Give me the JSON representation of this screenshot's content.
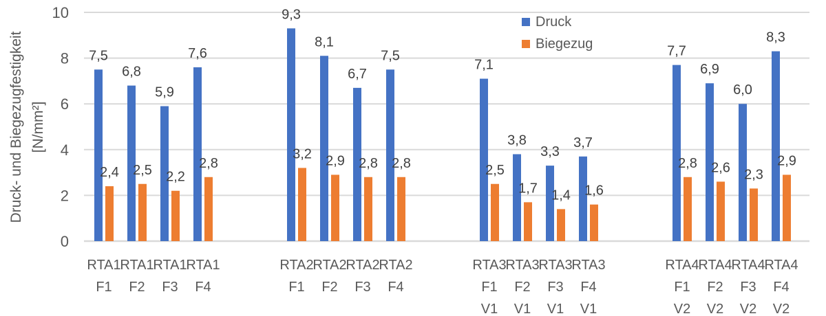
{
  "chart_data": {
    "type": "bar",
    "title": "",
    "xlabel": "",
    "ylabel": "Druck- und Biegezugfestigkeit [N/mm²]",
    "ylabel_lines": [
      "Druck- und Biegezugfestigkeit",
      "[N/mm²]"
    ],
    "ylim": [
      0,
      10
    ],
    "yticks": [
      "0",
      "2",
      "4",
      "6",
      "8",
      "10"
    ],
    "ytick_values": [
      0,
      2,
      4,
      6,
      8,
      10
    ],
    "grid": true,
    "legend_position": "top-center-right",
    "categories": [
      "RTA1 F1",
      "RTA1 F2",
      "RTA1 F3",
      "RTA1 F4",
      "RTA2 F1",
      "RTA2 F2",
      "RTA2 F3",
      "RTA2 F4",
      "RTA3 F1 V1",
      "RTA3 F2 V1",
      "RTA3 F3 V1",
      "RTA3 F4 V1",
      "RTA4 F1 V2",
      "RTA4 F2 V2",
      "RTA4 F3 V2",
      "RTA4 F4 V2"
    ],
    "category_lines": [
      [
        "RTA1",
        "F1"
      ],
      [
        "RTA1",
        "F2"
      ],
      [
        "RTA1",
        "F3"
      ],
      [
        "RTA1",
        "F4"
      ],
      [
        "RTA2",
        "F1"
      ],
      [
        "RTA2",
        "F2"
      ],
      [
        "RTA2",
        "F3"
      ],
      [
        "RTA2",
        "F4"
      ],
      [
        "RTA3",
        "F1",
        "V1"
      ],
      [
        "RTA3",
        "F2",
        "V1"
      ],
      [
        "RTA3",
        "F3",
        "V1"
      ],
      [
        "RTA3",
        "F4",
        "V1"
      ],
      [
        "RTA4",
        "F1",
        "V2"
      ],
      [
        "RTA4",
        "F2",
        "V2"
      ],
      [
        "RTA4",
        "F3",
        "V2"
      ],
      [
        "RTA4",
        "F4",
        "V2"
      ]
    ],
    "groups": [
      4,
      4,
      4,
      4
    ],
    "series": [
      {
        "name": "Druck",
        "color": "#4472C4",
        "values": [
          7.5,
          6.8,
          5.9,
          7.6,
          9.3,
          8.1,
          6.7,
          7.5,
          7.1,
          3.8,
          3.3,
          3.7,
          7.7,
          6.9,
          6.0,
          8.3
        ],
        "labels": [
          "7,5",
          "6,8",
          "5,9",
          "7,6",
          "9,3",
          "8,1",
          "6,7",
          "7,5",
          "7,1",
          "3,8",
          "3,3",
          "3,7",
          "7,7",
          "6,9",
          "6,0",
          "8,3"
        ]
      },
      {
        "name": "Biegezug",
        "color": "#ED7D31",
        "values": [
          2.4,
          2.5,
          2.2,
          2.8,
          3.2,
          2.9,
          2.8,
          2.8,
          2.5,
          1.7,
          1.4,
          1.6,
          2.8,
          2.6,
          2.3,
          2.9
        ],
        "labels": [
          "2,4",
          "2,5",
          "2,2",
          "2,8",
          "3,2",
          "2,9",
          "2,8",
          "2,8",
          "2,5",
          "1,7",
          "1,4",
          "1,6",
          "2,8",
          "2,6",
          "2,3",
          "2,9"
        ]
      }
    ]
  }
}
